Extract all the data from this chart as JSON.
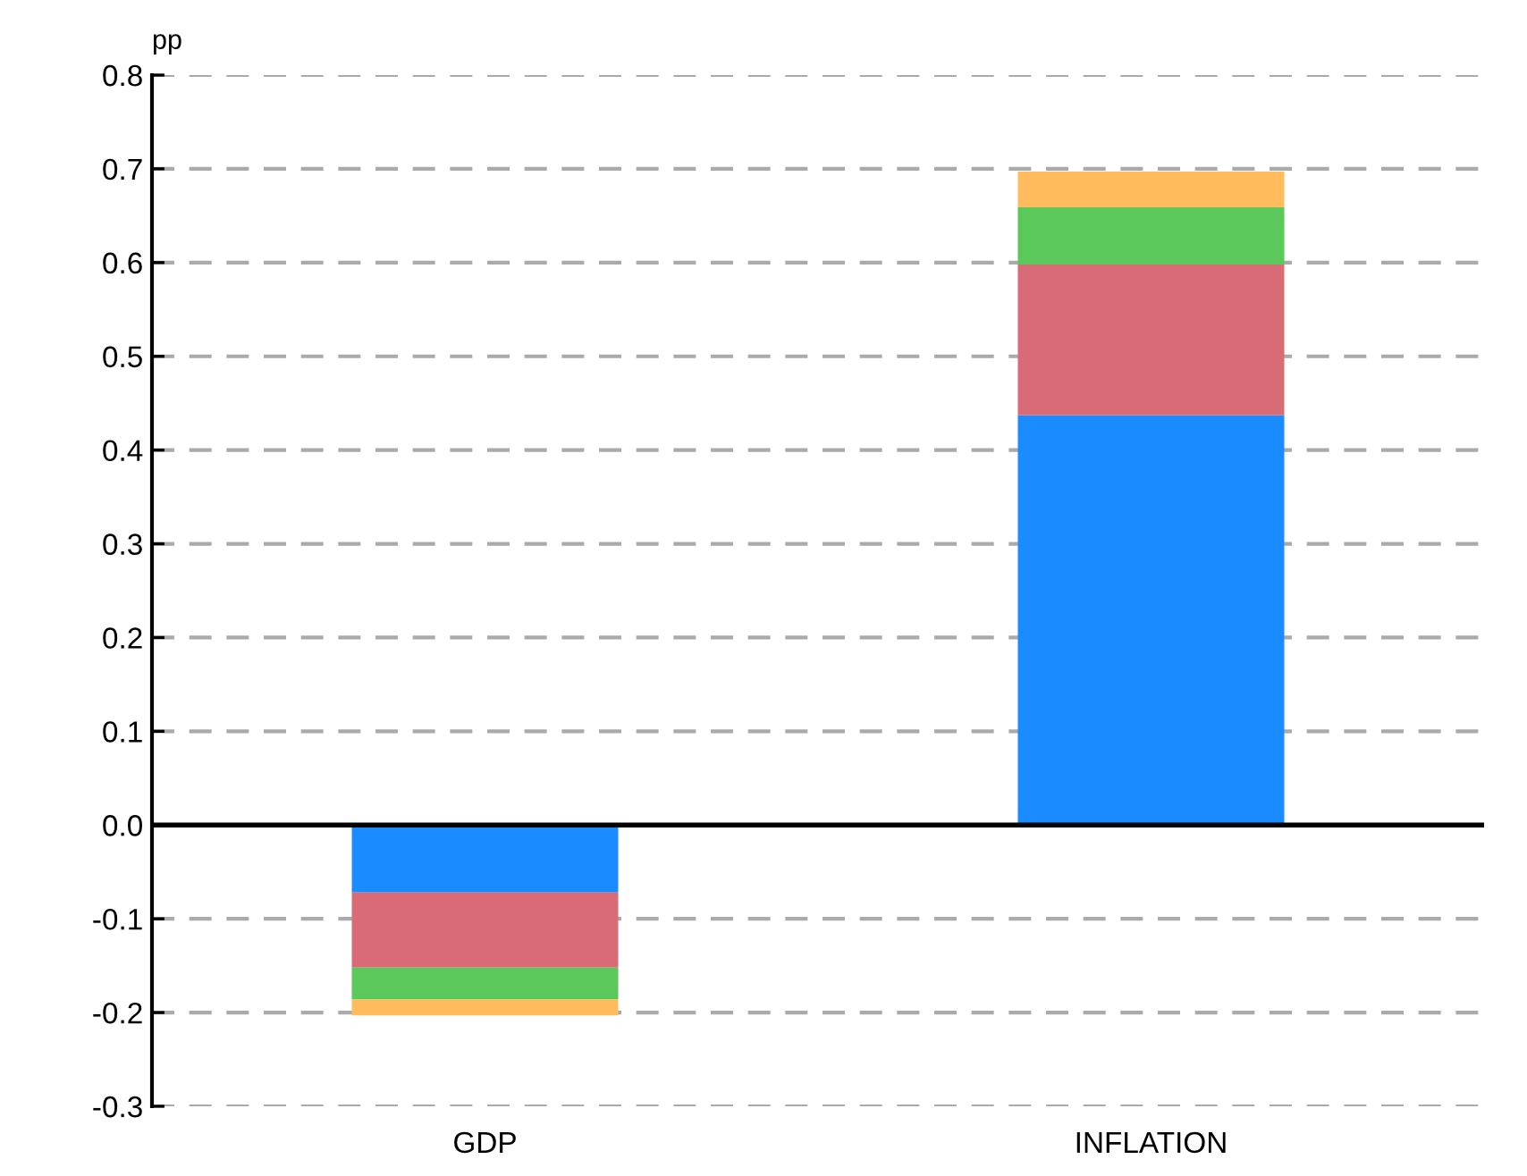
{
  "chart_data": {
    "type": "bar",
    "stacked": true,
    "ylabel": "pp",
    "categories": [
      "GDP",
      "INFLATION"
    ],
    "series": [
      {
        "color": "#1a8cff",
        "values": [
          -0.072,
          0.437
        ]
      },
      {
        "color": "#d96b76",
        "values": [
          -0.08,
          0.161
        ]
      },
      {
        "color": "#5bc85b",
        "values": [
          -0.034,
          0.061
        ]
      },
      {
        "color": "#ffbb5c",
        "values": [
          -0.017,
          0.038
        ]
      }
    ],
    "ylim": [
      -0.3,
      0.8
    ],
    "yticks": [
      {
        "value": -0.3,
        "label": "-0.3"
      },
      {
        "value": -0.2,
        "label": "-0.2"
      },
      {
        "value": -0.1,
        "label": "-0.1"
      },
      {
        "value": 0,
        "label": "0.0"
      },
      {
        "value": 0.1,
        "label": "0.1"
      },
      {
        "value": 0.2,
        "label": "0.2"
      },
      {
        "value": 0.3,
        "label": "0.3"
      },
      {
        "value": 0.4,
        "label": "0.4"
      },
      {
        "value": 0.5,
        "label": "0.5"
      },
      {
        "value": 0.6,
        "label": "0.6"
      },
      {
        "value": 0.7,
        "label": "0.7"
      },
      {
        "value": 0.8,
        "label": "0.8"
      }
    ],
    "grid": "y",
    "ref_lines": [
      {
        "axis": "y",
        "value": 0,
        "color": "#000000"
      }
    ]
  }
}
